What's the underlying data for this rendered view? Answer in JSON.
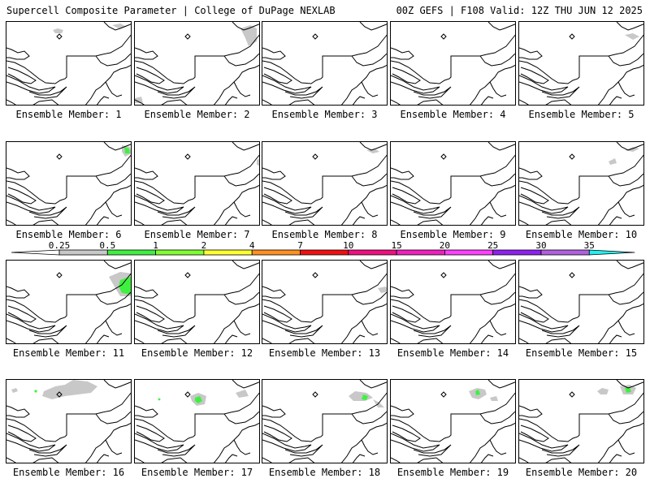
{
  "header": {
    "left": "Supercell Composite Parameter | College of DuPage NEXLAB",
    "right": "00Z GEFS | F108 Valid: 12Z THU JUN 12 2025"
  },
  "legend": {
    "thresholds": [
      "0.25",
      "0.5",
      "1",
      "2",
      "4",
      "7",
      "10",
      "15",
      "20",
      "25",
      "30",
      "35"
    ],
    "colors": [
      "#c8c8c8",
      "#40f040",
      "#80ff30",
      "#ffff30",
      "#ff9020",
      "#f01010",
      "#f01080",
      "#f020c0",
      "#ff40ff",
      "#9020f0",
      "#b060e0",
      "#20f0f0"
    ]
  },
  "panels": [
    {
      "label": "Ensemble Member: 1"
    },
    {
      "label": "Ensemble Member: 2"
    },
    {
      "label": "Ensemble Member: 3"
    },
    {
      "label": "Ensemble Member: 4"
    },
    {
      "label": "Ensemble Member: 5"
    },
    {
      "label": "Ensemble Member: 6"
    },
    {
      "label": "Ensemble Member: 7"
    },
    {
      "label": "Ensemble Member: 8"
    },
    {
      "label": "Ensemble Member: 9"
    },
    {
      "label": "Ensemble Member: 10"
    },
    {
      "label": "Ensemble Member: 11"
    },
    {
      "label": "Ensemble Member: 12"
    },
    {
      "label": "Ensemble Member: 13"
    },
    {
      "label": "Ensemble Member: 14"
    },
    {
      "label": "Ensemble Member: 15"
    },
    {
      "label": "Ensemble Member: 16"
    },
    {
      "label": "Ensemble Member: 17"
    },
    {
      "label": "Ensemble Member: 18"
    },
    {
      "label": "Ensemble Member: 19"
    },
    {
      "label": "Ensemble Member: 20"
    }
  ]
}
